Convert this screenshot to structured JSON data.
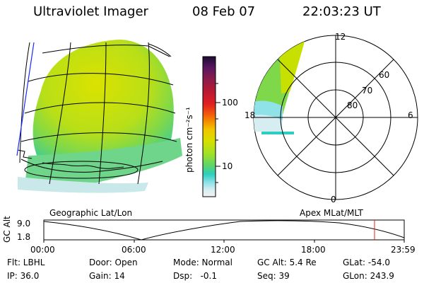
{
  "header": {
    "instrument": "Ultraviolet Imager",
    "date": "08 Feb 07",
    "time": "22:03:23 UT"
  },
  "colorbar": {
    "unit_label": "photon cm⁻²s⁻¹",
    "ticks": [
      "100",
      "10"
    ],
    "colors": [
      "#1b0a33",
      "#5a1660",
      "#8b1a4a",
      "#c01830",
      "#e02020",
      "#f05010",
      "#f58a00",
      "#f2c300",
      "#d8e000",
      "#9de02a",
      "#5bd46d",
      "#2ccfbe",
      "#8fe2e8",
      "#d6eef2",
      "#f3f3f3"
    ]
  },
  "geo_panel": {
    "label": "Geographic Lat/Lon"
  },
  "polar_panel": {
    "label": "Apex MLat/MLT",
    "mlt_labels": {
      "top": "12",
      "left": "18",
      "right": "6",
      "bottom": "0"
    },
    "lat_labels": [
      "60",
      "70",
      "80"
    ]
  },
  "timeline": {
    "ylabel": "GC Alt",
    "y_ticks": [
      "9.0",
      "1.8"
    ],
    "x_ticks": [
      "00:00",
      "06:00",
      "12:00",
      "18:00",
      "23:59"
    ],
    "current_time_marker": "22:03:23"
  },
  "status": {
    "flt": "Flt: LBHL",
    "ip": "IP: 36.0",
    "door": "Door: Open",
    "gain": "Gain: 14",
    "mode": "Mode: Normal",
    "dsp": "Dsp:   -0.1",
    "gc_alt": "GC Alt: 5.4 Re",
    "seq": "Seq: 39",
    "glat": "GLat: -54.0",
    "glon": "GLon: 243.9"
  }
}
